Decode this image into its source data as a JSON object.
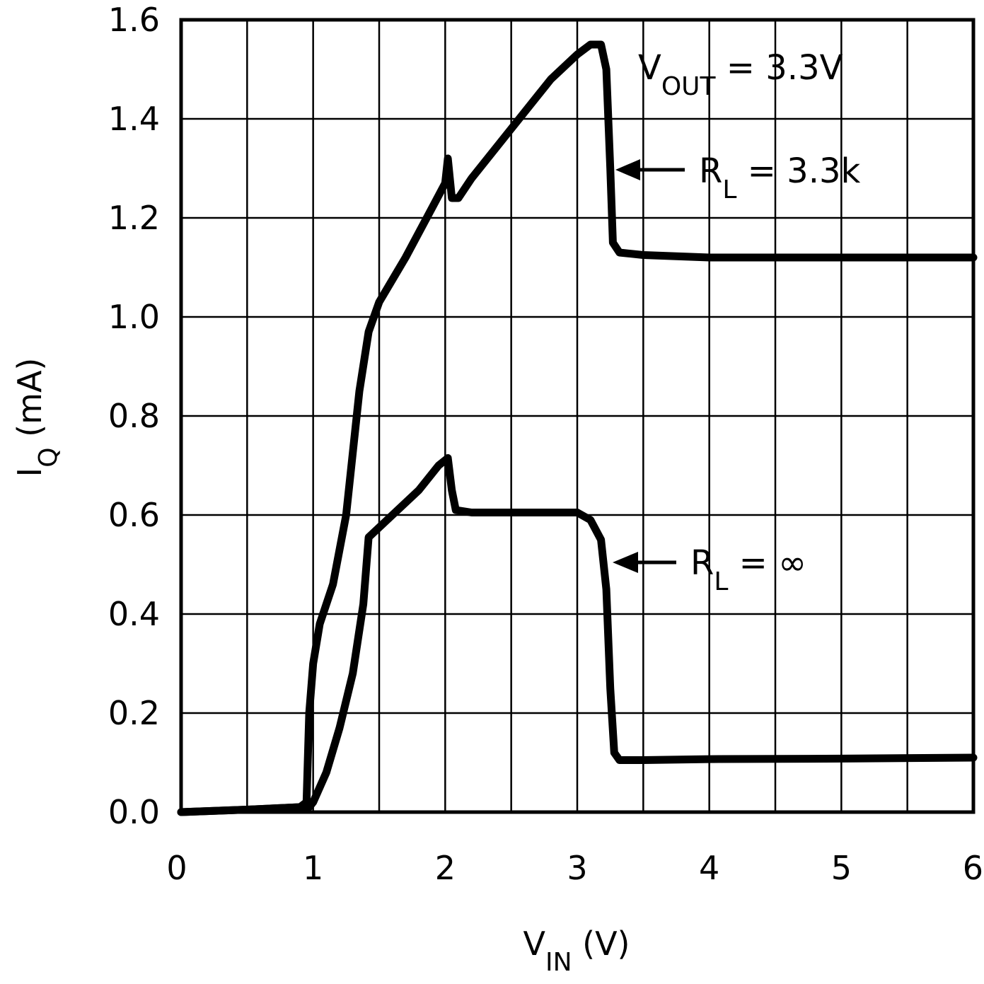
{
  "chart_data": {
    "type": "line",
    "xlabel": {
      "main": "V",
      "sub": "IN",
      "unit": " (V)"
    },
    "ylabel": {
      "main": "I",
      "sub": "Q",
      "unit": " (mA)"
    },
    "xlim": [
      0,
      6
    ],
    "ylim": [
      0,
      1.6
    ],
    "x_ticks": [
      "0",
      "1",
      "2",
      "3",
      "4",
      "5",
      "6"
    ],
    "y_ticks": [
      "0.0",
      "0.2",
      "0.4",
      "0.6",
      "0.8",
      "1.0",
      "1.2",
      "1.4",
      "1.6"
    ],
    "grid": true,
    "series": [
      {
        "annotation": {
          "main": "R",
          "sub": "L",
          "rest": " = 3.3k"
        },
        "arrow_at": [
          3.27,
          1.3
        ],
        "points": [
          [
            0,
            0.0
          ],
          [
            0.5,
            0.005
          ],
          [
            0.9,
            0.01
          ],
          [
            0.95,
            0.02
          ],
          [
            0.97,
            0.2
          ],
          [
            1.0,
            0.3
          ],
          [
            1.05,
            0.38
          ],
          [
            1.15,
            0.46
          ],
          [
            1.25,
            0.6
          ],
          [
            1.35,
            0.85
          ],
          [
            1.42,
            0.97
          ],
          [
            1.5,
            1.03
          ],
          [
            1.7,
            1.12
          ],
          [
            1.9,
            1.22
          ],
          [
            2.0,
            1.27
          ],
          [
            2.02,
            1.32
          ],
          [
            2.05,
            1.24
          ],
          [
            2.1,
            1.24
          ],
          [
            2.2,
            1.28
          ],
          [
            2.5,
            1.38
          ],
          [
            2.8,
            1.48
          ],
          [
            3.0,
            1.53
          ],
          [
            3.1,
            1.55
          ],
          [
            3.18,
            1.55
          ],
          [
            3.22,
            1.5
          ],
          [
            3.25,
            1.3
          ],
          [
            3.27,
            1.15
          ],
          [
            3.32,
            1.13
          ],
          [
            3.5,
            1.125
          ],
          [
            4.0,
            1.12
          ],
          [
            5.0,
            1.12
          ],
          [
            6.0,
            1.12
          ]
        ]
      },
      {
        "annotation": {
          "main": "R",
          "sub": "L",
          "rest": " = ∞"
        },
        "arrow_at": [
          3.27,
          0.5
        ],
        "points": [
          [
            0,
            0.0
          ],
          [
            0.5,
            0.005
          ],
          [
            0.9,
            0.01
          ],
          [
            0.97,
            0.01
          ],
          [
            1.0,
            0.02
          ],
          [
            1.1,
            0.08
          ],
          [
            1.2,
            0.17
          ],
          [
            1.3,
            0.28
          ],
          [
            1.38,
            0.42
          ],
          [
            1.42,
            0.555
          ],
          [
            1.6,
            0.6
          ],
          [
            1.8,
            0.65
          ],
          [
            1.95,
            0.7
          ],
          [
            2.02,
            0.715
          ],
          [
            2.05,
            0.65
          ],
          [
            2.08,
            0.61
          ],
          [
            2.2,
            0.605
          ],
          [
            2.5,
            0.605
          ],
          [
            3.0,
            0.605
          ],
          [
            3.1,
            0.59
          ],
          [
            3.18,
            0.55
          ],
          [
            3.22,
            0.45
          ],
          [
            3.25,
            0.25
          ],
          [
            3.28,
            0.12
          ],
          [
            3.32,
            0.105
          ],
          [
            3.5,
            0.105
          ],
          [
            4.0,
            0.107
          ],
          [
            5.0,
            0.108
          ],
          [
            6.0,
            0.11
          ]
        ]
      }
    ],
    "condition": {
      "main": "V",
      "sub": "OUT",
      "rest": " = 3.3V"
    }
  }
}
